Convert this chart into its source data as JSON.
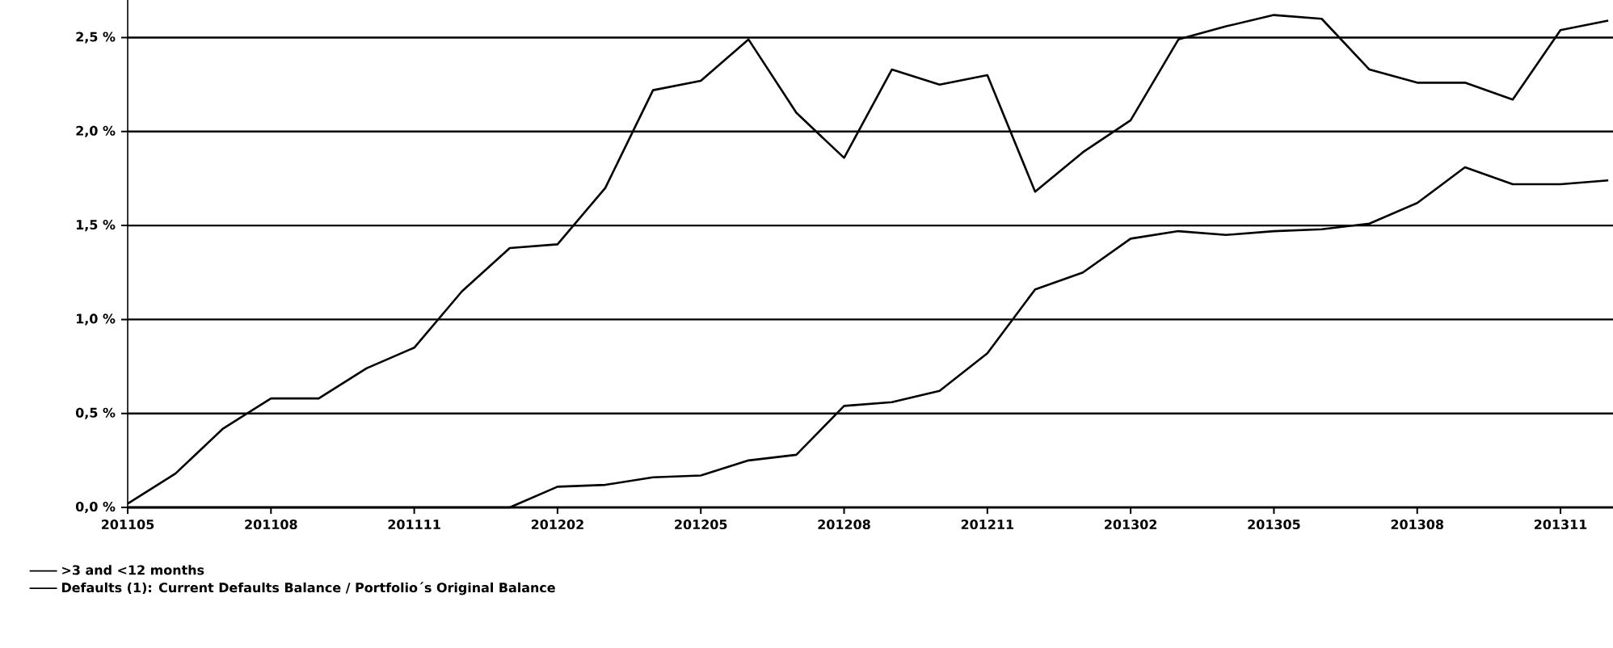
{
  "chart_data": {
    "type": "line",
    "categories": [
      "201105",
      null,
      null,
      "201108",
      null,
      null,
      "201111",
      null,
      null,
      "201202",
      null,
      null,
      "201205",
      null,
      null,
      "201208",
      null,
      null,
      "201211",
      null,
      null,
      "201302",
      null,
      null,
      "201305",
      null,
      null,
      "201308",
      null,
      null,
      "201311",
      null
    ],
    "series": [
      {
        "name": ">3 and <12 months",
        "color": "#000000",
        "values": [
          0.02,
          0.18,
          0.42,
          0.58,
          0.58,
          0.74,
          0.85,
          1.15,
          1.38,
          1.4,
          1.7,
          2.22,
          2.27,
          2.49,
          2.1,
          1.86,
          2.33,
          2.25,
          2.3,
          1.68,
          1.89,
          2.06,
          2.49,
          2.56,
          2.62,
          2.6,
          2.33,
          2.26,
          2.26,
          2.17,
          2.54,
          2.59
        ]
      },
      {
        "name": "Defaults (1): Current Defaults Balance / Portfolio´s Original Balance",
        "color": "#000000",
        "values": [
          0,
          0,
          0,
          0,
          0,
          0,
          0,
          0,
          0,
          0.11,
          0.12,
          0.16,
          0.17,
          0.25,
          0.28,
          0.54,
          0.56,
          0.62,
          0.82,
          1.16,
          1.25,
          1.43,
          1.47,
          1.45,
          1.47,
          1.48,
          1.51,
          1.62,
          1.81,
          1.72,
          1.72,
          1.74
        ]
      }
    ],
    "ylim": [
      0,
      2.7
    ],
    "yticks": [
      {
        "value": 0,
        "label": "0,0 %"
      },
      {
        "value": 0.5,
        "label": "0,5 %"
      },
      {
        "value": 1,
        "label": "1,0 %"
      },
      {
        "value": 1.5,
        "label": "1,5 %"
      },
      {
        "value": 2,
        "label": "2,0 %"
      },
      {
        "value": 2.5,
        "label": "2,5 %"
      }
    ],
    "grid": "y",
    "legend": "bottom left",
    "marker": "none",
    "line_style": "solid"
  }
}
